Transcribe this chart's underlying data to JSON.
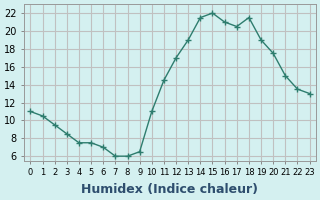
{
  "x": [
    0,
    1,
    2,
    3,
    4,
    5,
    6,
    7,
    8,
    9,
    10,
    11,
    12,
    13,
    14,
    15,
    16,
    17,
    18,
    19,
    20,
    21,
    22,
    23
  ],
  "y": [
    11,
    10.5,
    9.5,
    8.5,
    7.5,
    7.5,
    7,
    6,
    6,
    6.5,
    11,
    14.5,
    17,
    19,
    21.5,
    22,
    21,
    20.5,
    21.5,
    19,
    17.5,
    15,
    13.5,
    13
  ],
  "line_color": "#2e7d6e",
  "marker": "+",
  "marker_size": 4,
  "bg_color": "#d4f0f0",
  "grid_major_color": "#c0c0c0",
  "xlabel": "Humidex (Indice chaleur)",
  "xlabel_fontsize": 9,
  "ylabel_ticks": [
    6,
    8,
    10,
    12,
    14,
    16,
    18,
    20,
    22
  ],
  "xlim": [
    -0.5,
    23.5
  ],
  "ylim": [
    5.5,
    23
  ],
  "xticks": [
    0,
    1,
    2,
    3,
    4,
    5,
    6,
    7,
    8,
    9,
    10,
    11,
    12,
    13,
    14,
    15,
    16,
    17,
    18,
    19,
    20,
    21,
    22,
    23
  ]
}
